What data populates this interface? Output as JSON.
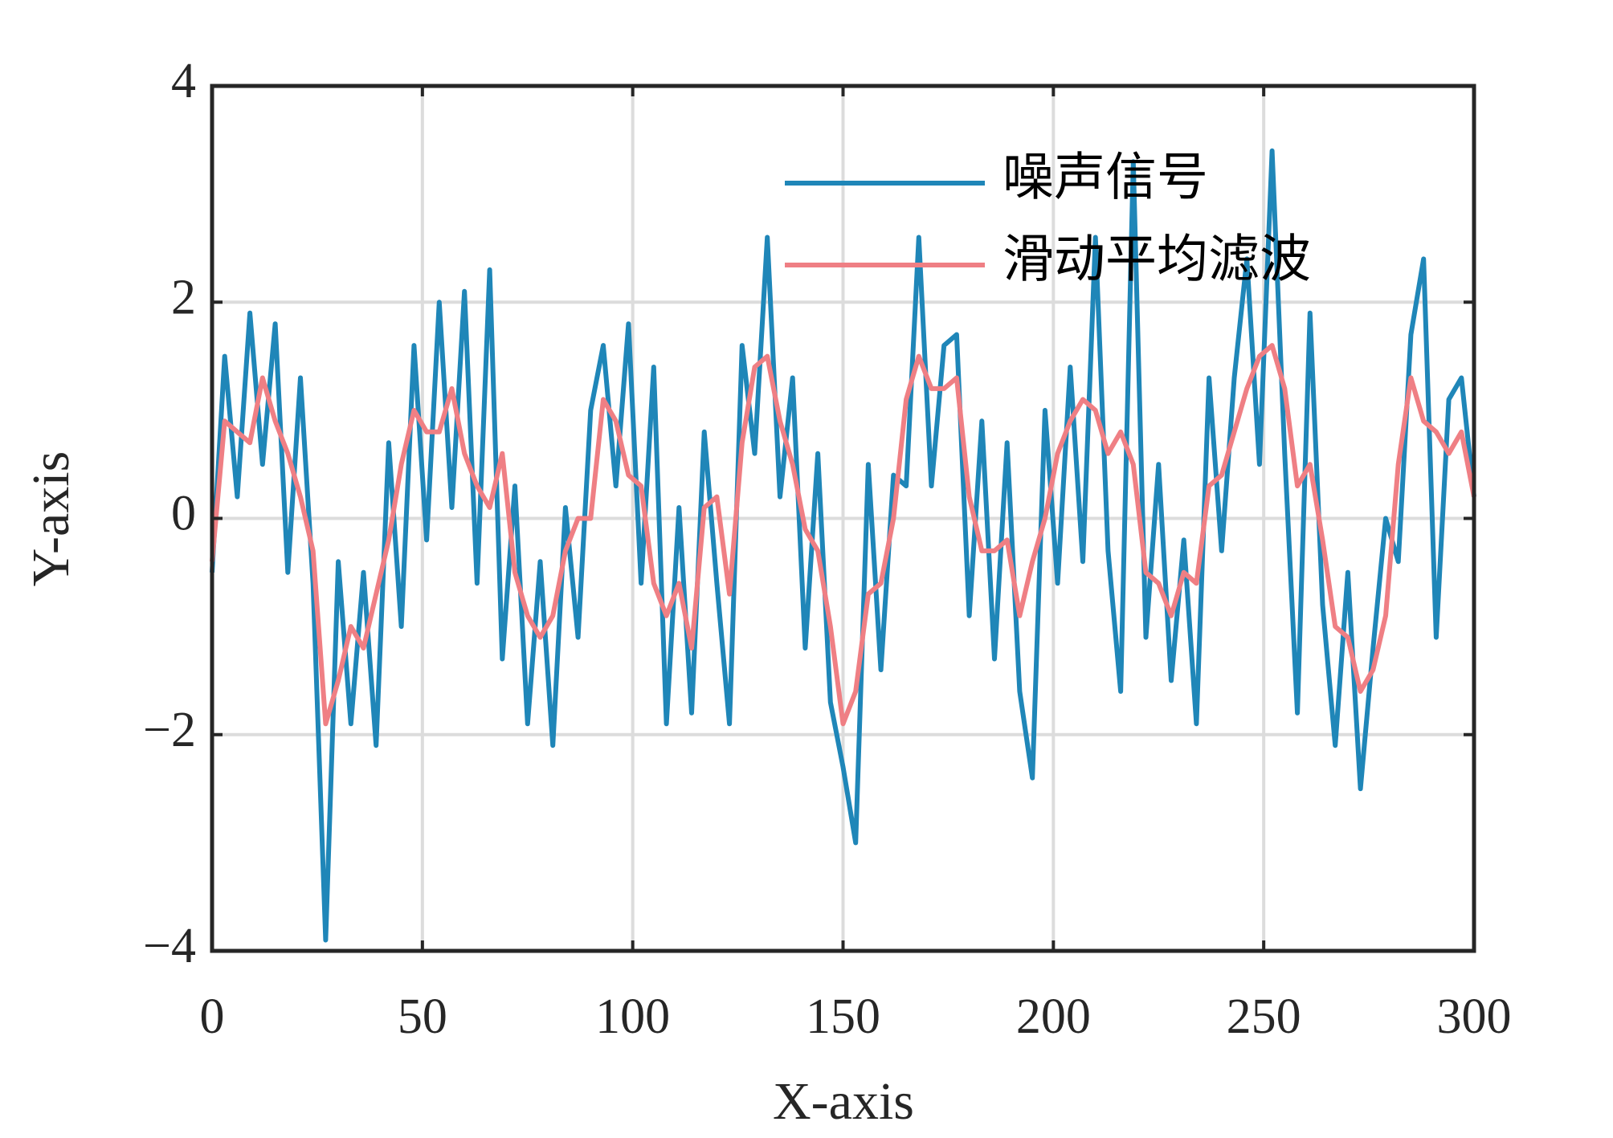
{
  "chart_data": {
    "type": "line",
    "xlabel": "X-axis",
    "ylabel": "Y-axis",
    "x": [
      0,
      3,
      6,
      9,
      12,
      15,
      18,
      21,
      24,
      27,
      30,
      33,
      36,
      39,
      42,
      45,
      48,
      51,
      54,
      57,
      60,
      63,
      66,
      69,
      72,
      75,
      78,
      81,
      84,
      87,
      90,
      93,
      96,
      99,
      102,
      105,
      108,
      111,
      114,
      117,
      120,
      123,
      126,
      129,
      132,
      135,
      138,
      141,
      144,
      147,
      150,
      153,
      156,
      159,
      162,
      165,
      168,
      171,
      174,
      177,
      180,
      183,
      186,
      189,
      192,
      195,
      198,
      201,
      204,
      207,
      210,
      213,
      216,
      219,
      222,
      225,
      228,
      231,
      234,
      237,
      240,
      243,
      246,
      249,
      252,
      255,
      258,
      261,
      264,
      267,
      270,
      273,
      276,
      279,
      282,
      285,
      288,
      291,
      294,
      297,
      300
    ],
    "series": [
      {
        "name": "噪声信号",
        "color": "#1f86b8",
        "values": [
          -0.5,
          1.5,
          0.2,
          1.9,
          0.5,
          1.8,
          -0.5,
          1.3,
          -0.6,
          -3.9,
          -0.4,
          -1.9,
          -0.5,
          -2.1,
          0.7,
          -1.0,
          1.6,
          -0.2,
          2.0,
          0.1,
          2.1,
          -0.6,
          2.3,
          -1.3,
          0.3,
          -1.9,
          -0.4,
          -2.1,
          0.1,
          -1.1,
          1.0,
          1.6,
          0.3,
          1.8,
          -0.6,
          1.4,
          -1.9,
          0.1,
          -1.8,
          0.8,
          -0.6,
          -1.9,
          1.6,
          0.6,
          2.6,
          0.2,
          1.3,
          -1.2,
          0.6,
          -1.7,
          -2.3,
          -3.0,
          0.5,
          -1.4,
          0.4,
          0.3,
          2.6,
          0.3,
          1.6,
          1.7,
          -0.9,
          0.9,
          -1.3,
          0.7,
          -1.6,
          -2.4,
          1.0,
          -0.6,
          1.4,
          -0.4,
          2.6,
          -0.3,
          -1.6,
          3.3,
          -1.1,
          0.5,
          -1.5,
          -0.2,
          -1.9,
          1.3,
          -0.3,
          1.3,
          2.4,
          0.5,
          3.4,
          0.6,
          -1.8,
          1.9,
          -0.8,
          -2.1,
          -0.5,
          -2.5,
          -1.2,
          0.0,
          -0.4,
          1.7,
          2.4,
          -1.1,
          1.1,
          1.3,
          0.2
        ]
      },
      {
        "name": "滑动平均滤波",
        "color": "#ef7f84",
        "values": [
          -0.4,
          0.9,
          0.8,
          0.7,
          1.3,
          0.9,
          0.6,
          0.2,
          -0.3,
          -1.9,
          -1.5,
          -1.0,
          -1.2,
          -0.7,
          -0.2,
          0.5,
          1.0,
          0.8,
          0.8,
          1.2,
          0.6,
          0.3,
          0.1,
          0.6,
          -0.5,
          -0.9,
          -1.1,
          -0.9,
          -0.3,
          0.0,
          0.0,
          1.1,
          0.9,
          0.4,
          0.3,
          -0.6,
          -0.9,
          -0.6,
          -1.2,
          0.1,
          0.2,
          -0.7,
          0.7,
          1.4,
          1.5,
          0.9,
          0.5,
          -0.1,
          -0.3,
          -1.0,
          -1.9,
          -1.6,
          -0.7,
          -0.6,
          0.0,
          1.1,
          1.5,
          1.2,
          1.2,
          1.3,
          0.2,
          -0.3,
          -0.3,
          -0.2,
          -0.9,
          -0.4,
          0.0,
          0.6,
          0.9,
          1.1,
          1.0,
          0.6,
          0.8,
          0.5,
          -0.5,
          -0.6,
          -0.9,
          -0.5,
          -0.6,
          0.3,
          0.4,
          0.8,
          1.2,
          1.5,
          1.6,
          1.2,
          0.3,
          0.5,
          -0.2,
          -1.0,
          -1.1,
          -1.6,
          -1.4,
          -0.9,
          0.5,
          1.3,
          0.9,
          0.8,
          0.6,
          0.8,
          0.2
        ]
      }
    ],
    "xlim": [
      0,
      300
    ],
    "xticks": [
      0,
      50,
      100,
      150,
      200,
      250,
      300
    ],
    "ylim": [
      -4,
      4
    ],
    "yticks": [
      {
        "value": -4,
        "label": "−4"
      },
      {
        "value": -2,
        "label": "−2"
      },
      0,
      2,
      4
    ],
    "grid": true,
    "legend": "upper right"
  }
}
